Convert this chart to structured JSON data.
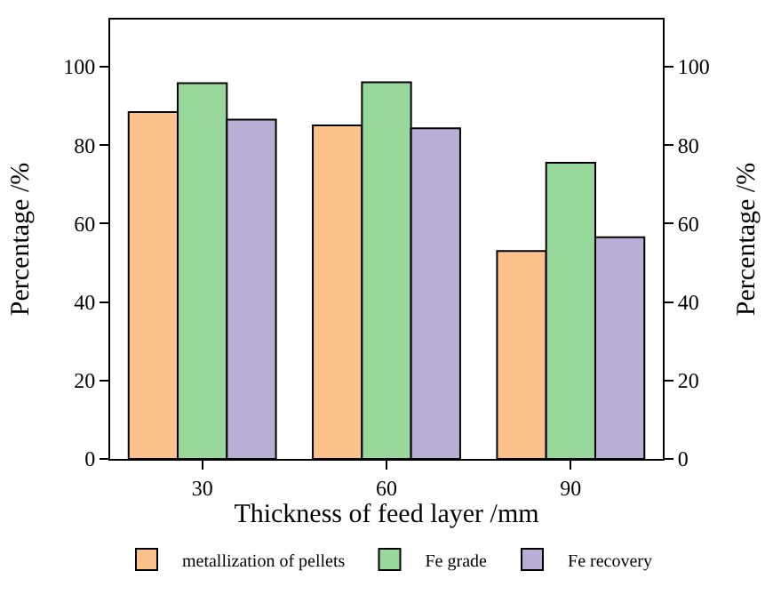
{
  "chart_data": {
    "type": "bar",
    "xlabel": "Thickness of feed layer /mm",
    "ylabel": "Percentage /%",
    "y2label": "Percentage /%",
    "categories": [
      "30",
      "60",
      "90"
    ],
    "series": [
      {
        "name": "metallization of pellets",
        "color": "#fdc18b",
        "values": [
          88.4,
          85,
          53
        ]
      },
      {
        "name": "Fe grade",
        "color": "#98d89a",
        "values": [
          95.8,
          96,
          75.5
        ]
      },
      {
        "name": "Fe recovery",
        "color": "#b8aed6",
        "values": [
          86.5,
          84.3,
          56.5
        ]
      }
    ],
    "ylim": [
      0,
      112
    ],
    "yticks": [
      0,
      20,
      40,
      60,
      80,
      100
    ],
    "y2lim": [
      0,
      112
    ],
    "y2ticks": [
      0,
      20,
      40,
      60,
      80,
      100
    ],
    "legend": "bottom"
  }
}
